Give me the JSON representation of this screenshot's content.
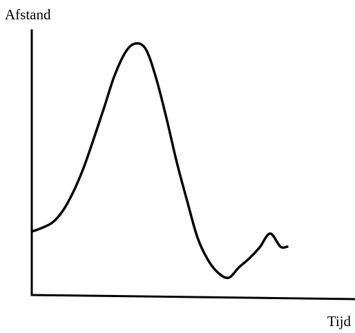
{
  "chart_data": {
    "type": "line",
    "title": "",
    "xlabel": "Tijd",
    "ylabel": "Afstand",
    "grid": false,
    "legend": "none",
    "colors": {
      "line": "#000000",
      "axes": "#000000",
      "background": "#ffffff"
    },
    "x": [
      0,
      12,
      30,
      45,
      60,
      75,
      90,
      105,
      120,
      136,
      150,
      165,
      180,
      195,
      210,
      225,
      240,
      255,
      270,
      285,
      300,
      315,
      330,
      345,
      360,
      370
    ],
    "y": [
      92,
      96,
      105,
      122,
      149,
      184,
      227,
      272,
      318,
      352,
      364,
      356,
      314,
      256,
      192,
      136,
      83,
      51,
      32,
      25,
      40,
      53,
      69,
      89,
      70,
      70
    ],
    "xlim": [
      0,
      470
    ],
    "ylim": [
      0,
      400
    ]
  }
}
